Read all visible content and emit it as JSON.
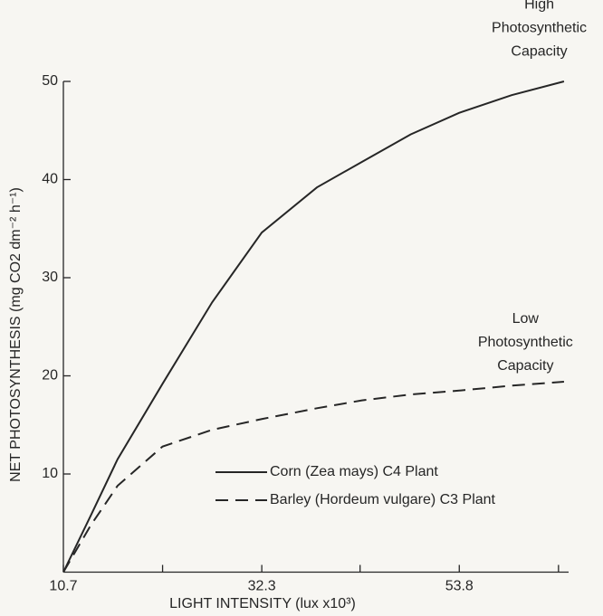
{
  "chart_data": {
    "type": "line",
    "x": [
      10.7,
      13.7,
      16.6,
      21.5,
      26.9,
      32.3,
      38.3,
      43.2,
      48.5,
      53.8,
      59.5,
      65.2
    ],
    "series": [
      {
        "name": "Corn (Zea mays) C4 Plant",
        "color": "#262626",
        "dash": "solid",
        "values": [
          0,
          5.8,
          11.5,
          19.2,
          27.5,
          34.6,
          39.2,
          41.8,
          44.6,
          46.8,
          48.6,
          50
        ]
      },
      {
        "name": "Barley (Hordeum vulgare) C3 Plant",
        "color": "#262626",
        "dash": "dashed",
        "values": [
          0,
          4.8,
          8.8,
          12.8,
          14.5,
          15.6,
          16.7,
          17.5,
          18.1,
          18.5,
          19.0,
          19.4
        ]
      }
    ],
    "xlabel": "LIGHT INTENSITY (lux x10³)",
    "ylabel": "NET PHOTOSYNTHESIS (mg CO2 dm⁻² h⁻¹)",
    "xlim": [
      10.7,
      65.7
    ],
    "ylim": [
      0,
      50
    ],
    "xticks": [
      10.7,
      32.3,
      53.8
    ],
    "xminor_ticks": [
      21.5,
      43.0,
      64.6
    ],
    "yticks": [
      10,
      20,
      30,
      40,
      50
    ],
    "annotations": [
      {
        "lines": [
          "High",
          "Photosynthetic",
          "Capacity"
        ],
        "x": 62.5,
        "y": 57.8
      },
      {
        "lines": [
          "Low",
          "Photosynthetic",
          "Capacity"
        ],
        "x": 61.0,
        "y": 25.8
      }
    ]
  }
}
